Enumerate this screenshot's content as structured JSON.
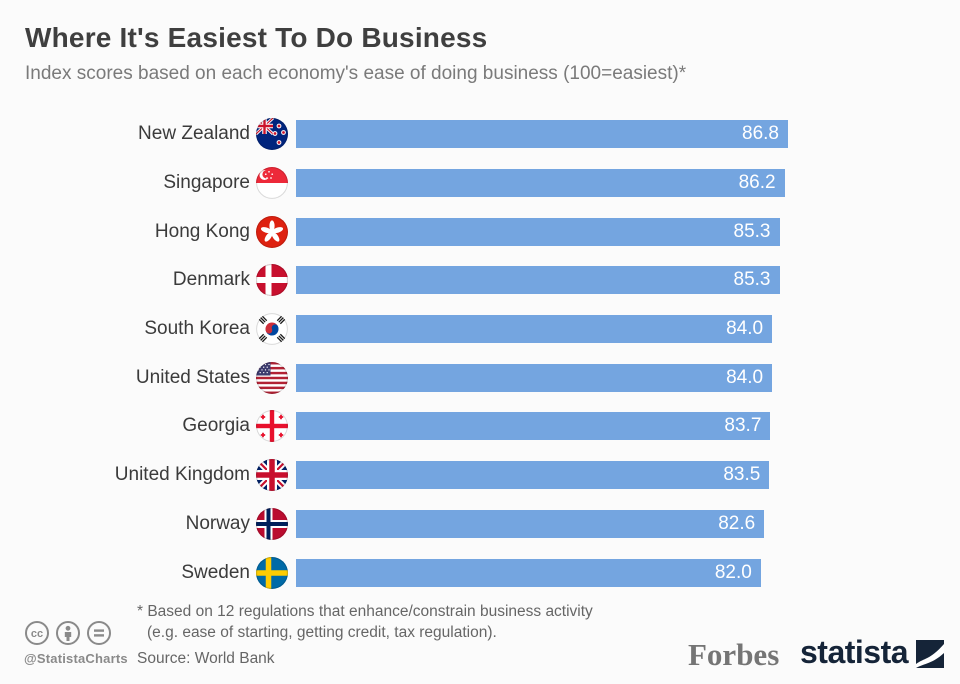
{
  "header": {
    "title": "Where It's Easiest To Do Business",
    "subtitle": "Index scores based on each economy's ease of doing business (100=easiest)*"
  },
  "chart_data": {
    "type": "bar",
    "orientation": "horizontal",
    "title": "Where It's Easiest To Do Business",
    "subtitle": "Index scores based on each economy's ease of doing business (100=easiest)*",
    "categories": [
      "New Zealand",
      "Singapore",
      "Hong Kong",
      "Denmark",
      "South Korea",
      "United States",
      "Georgia",
      "United Kingdom",
      "Norway",
      "Sweden"
    ],
    "values": [
      86.8,
      86.2,
      85.3,
      85.3,
      84.0,
      84.0,
      83.7,
      83.5,
      82.6,
      82.0
    ],
    "values_display": [
      "86.8",
      "86.2",
      "85.3",
      "85.3",
      "84.0",
      "84.0",
      "83.7",
      "83.5",
      "82.6",
      "82.0"
    ],
    "flags": [
      "nz",
      "sg",
      "hk",
      "dk",
      "kr",
      "us",
      "ge",
      "gb",
      "no",
      "se"
    ],
    "flag_names": [
      "new-zealand",
      "singapore",
      "hong-kong",
      "denmark",
      "south-korea",
      "united-states",
      "georgia",
      "united-kingdom",
      "norway",
      "sweden"
    ],
    "value_range": [
      0,
      100
    ],
    "axis_hidden": true,
    "value_labels_inside_bar": true,
    "bar_color": "#74A5E0",
    "value_text_color": "#ffffff",
    "source": "World Bank"
  },
  "footer": {
    "license_icons": [
      "cc-icon",
      "attribution-icon",
      "equal-icon"
    ],
    "handle": "@StatistaCharts",
    "footnote_line1": "* Based on 12 regulations that enhance/constrain business activity",
    "footnote_line2": "(e.g. ease of starting, getting credit, tax regulation).",
    "source": "Source: World Bank",
    "brand_left": "Forbes",
    "brand_right": "statista"
  },
  "colors": {
    "background": "#fbfbfb",
    "bar": "#74A5E0",
    "title_text": "#3f3f3f",
    "subtitle_text": "#7a7a7a",
    "label_text": "#3b3b3b",
    "footnote_text": "#666666",
    "brand_forbes": "#757575",
    "brand_statista": "#152438"
  }
}
